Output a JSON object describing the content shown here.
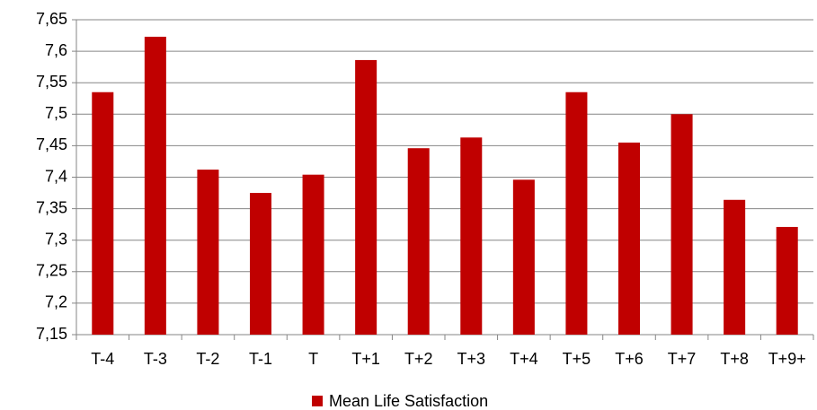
{
  "chart_data": {
    "type": "bar",
    "categories": [
      "T-4",
      "T-3",
      "T-2",
      "T-1",
      "T",
      "T+1",
      "T+2",
      "T+3",
      "T+4",
      "T+5",
      "T+6",
      "T+7",
      "T+8",
      "T+9+"
    ],
    "series": [
      {
        "name": "Mean Life Satisfaction",
        "color": "#c00000",
        "values": [
          7.535,
          7.623,
          7.412,
          7.375,
          7.404,
          7.586,
          7.446,
          7.463,
          7.396,
          7.535,
          7.455,
          7.5,
          7.364,
          7.321
        ]
      }
    ],
    "ylim": [
      7.15,
      7.65
    ],
    "yticks": [
      {
        "value": 7.15,
        "label": "7,15"
      },
      {
        "value": 7.2,
        "label": "7,2"
      },
      {
        "value": 7.25,
        "label": "7,25"
      },
      {
        "value": 7.3,
        "label": "7,3"
      },
      {
        "value": 7.35,
        "label": "7,35"
      },
      {
        "value": 7.4,
        "label": "7,4"
      },
      {
        "value": 7.45,
        "label": "7,45"
      },
      {
        "value": 7.5,
        "label": "7,5"
      },
      {
        "value": 7.55,
        "label": "7,55"
      },
      {
        "value": 7.6,
        "label": "7,6"
      },
      {
        "value": 7.65,
        "label": "7,65"
      }
    ],
    "grid": true,
    "legend": "bottom"
  }
}
